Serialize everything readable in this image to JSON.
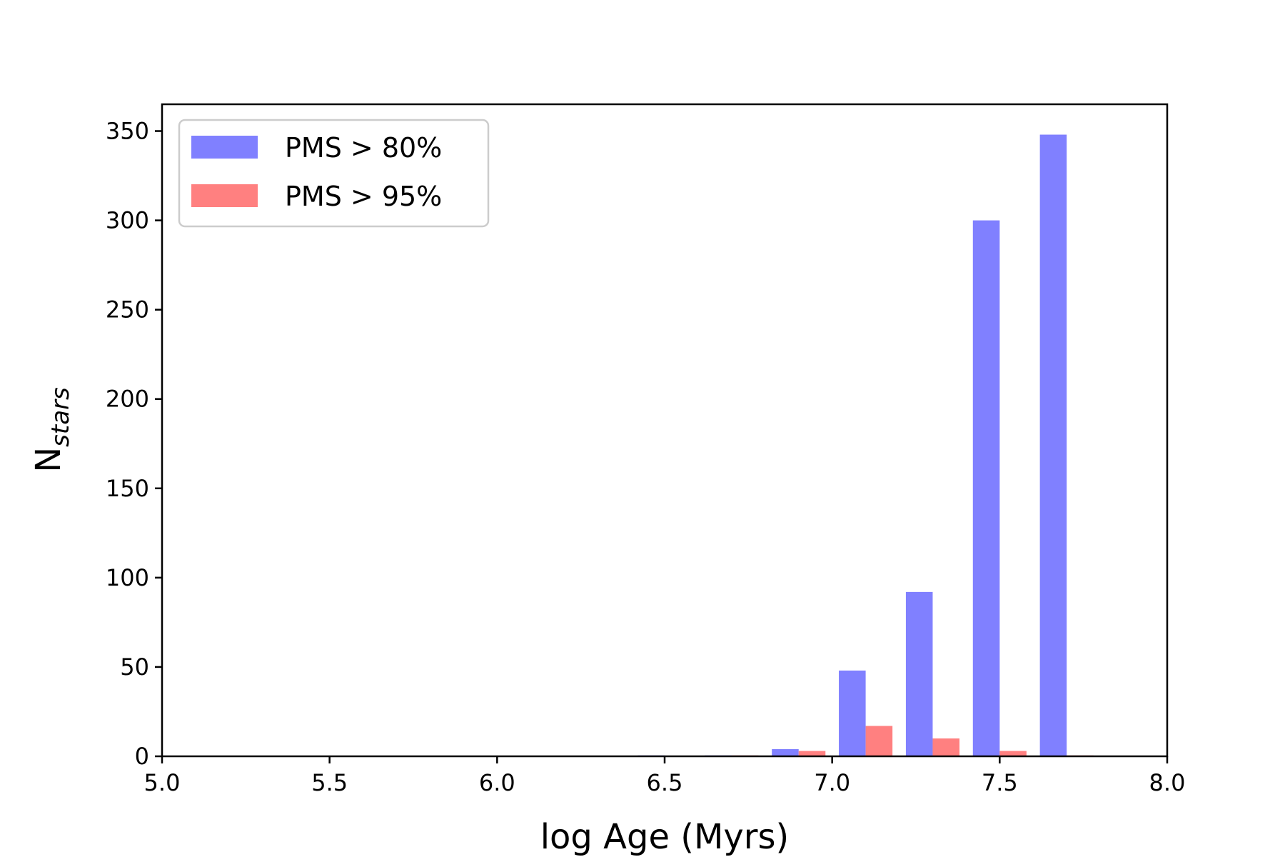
{
  "chart_data": {
    "type": "bar",
    "xlabel": "log Age (Myrs)",
    "ylabel_main": "N",
    "ylabel_sub": "stars",
    "xlim": [
      5.0,
      8.0
    ],
    "ylim": [
      0,
      365
    ],
    "xticks": [
      "5.0",
      "5.5",
      "6.0",
      "6.5",
      "7.0",
      "7.5",
      "8.0"
    ],
    "xtick_values": [
      5.0,
      5.5,
      6.0,
      6.5,
      7.0,
      7.5,
      8.0
    ],
    "yticks": [
      "0",
      "50",
      "100",
      "150",
      "200",
      "250",
      "300",
      "350"
    ],
    "ytick_values": [
      0,
      50,
      100,
      150,
      200,
      250,
      300,
      350
    ],
    "grid": false,
    "legend_position": "top-left",
    "bin_edges": [
      4.8,
      5.0,
      5.2,
      5.4,
      5.6,
      5.8,
      6.0,
      6.2,
      6.4,
      6.6,
      6.8,
      7.0,
      7.2,
      7.4,
      7.6,
      7.8
    ],
    "bin_centers": [
      4.9,
      5.1,
      5.3,
      5.5,
      5.7,
      5.9,
      6.1,
      6.3,
      6.5,
      6.7,
      6.9,
      7.1,
      7.3,
      7.5,
      7.7
    ],
    "series": [
      {
        "name": "PMS > 80%",
        "color": "#8080ff",
        "values": [
          0,
          0,
          0,
          0,
          0,
          0,
          0,
          0,
          0.5,
          0.5,
          4,
          48,
          92,
          300,
          348
        ]
      },
      {
        "name": "PMS > 95%",
        "color": "#ff8080",
        "values": [
          0,
          0,
          0,
          0,
          0,
          0,
          0,
          0,
          0,
          0.5,
          3,
          17,
          10,
          3,
          0.5
        ]
      }
    ]
  }
}
